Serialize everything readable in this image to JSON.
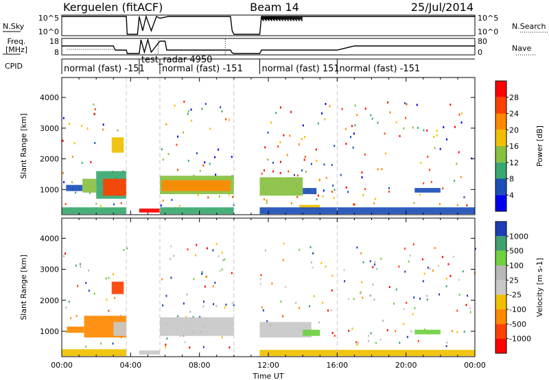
{
  "header": {
    "station": "Kerguelen (fitACF)",
    "beam": "Beam 14",
    "date": "25/Jul/2014"
  },
  "top_panels": {
    "nsky_label": "N.Sky",
    "nsky_ticks": [
      "10^5",
      "10^0"
    ],
    "nsearch_label": "N.Search",
    "nsearch_ticks": [
      "10^5",
      "10^0"
    ],
    "freq_label_line1": "Freq.",
    "freq_label_line2": "[MHz]",
    "freq_ticks": [
      "18",
      "8"
    ],
    "nave_label": "Nave",
    "nave_ticks": [
      "80",
      "0"
    ],
    "cpid_label": "CPID"
  },
  "cpid_segments": [
    {
      "label": "normal (fast) -151",
      "start": 0.0,
      "end": 3.75
    },
    {
      "label": "test_radar 4950",
      "start": 4.5,
      "end": 5.7
    },
    {
      "label": "normal (fast) -151",
      "start": 5.7,
      "end": 10.0
    },
    {
      "label": "normal (fast) 151",
      "start": 11.5,
      "end": 16.0
    },
    {
      "label": "normal (fast) -151",
      "start": 16.0,
      "end": 24.0
    }
  ],
  "chart_data": [
    {
      "type": "heatmap",
      "id": "power",
      "xlabel": "",
      "ylabel": "Slant Range [km]",
      "xlim": [
        0,
        24
      ],
      "ylim": [
        180,
        4650
      ],
      "yticks": [
        "1000",
        "2000",
        "3000",
        "4000"
      ],
      "colorbar_label": "Power [dB]",
      "colorbar_ticks": [
        "28",
        "24",
        "20",
        "16",
        "12",
        "8",
        "4"
      ],
      "scale": [
        {
          "value": 30,
          "color": "#ff0000"
        },
        {
          "value": 26,
          "color": "#ff4000"
        },
        {
          "value": 22,
          "color": "#ff8800"
        },
        {
          "value": 18,
          "color": "#f0c000"
        },
        {
          "value": 14,
          "color": "#88c040"
        },
        {
          "value": 10,
          "color": "#38a870"
        },
        {
          "value": 6,
          "color": "#1c4fb8"
        },
        {
          "value": 2,
          "color": "#0000ee"
        }
      ],
      "regions": [
        {
          "t0": 0.25,
          "t1": 1.2,
          "r0": 950,
          "r1": 1150,
          "v": 6
        },
        {
          "t0": 1.2,
          "t1": 2.0,
          "r0": 900,
          "r1": 1350,
          "v": 14
        },
        {
          "t0": 2.0,
          "t1": 3.75,
          "r0": 700,
          "r1": 1600,
          "v": 10
        },
        {
          "t0": 2.4,
          "t1": 3.75,
          "r0": 800,
          "r1": 1350,
          "v": 26
        },
        {
          "t0": 2.9,
          "t1": 3.6,
          "r0": 2200,
          "r1": 2700,
          "v": 18
        },
        {
          "t0": 5.7,
          "t1": 10.0,
          "r0": 850,
          "r1": 1450,
          "v": 12
        },
        {
          "t0": 5.8,
          "t1": 9.8,
          "r0": 950,
          "r1": 1300,
          "v": 22
        },
        {
          "t0": 11.5,
          "t1": 14.0,
          "r0": 800,
          "r1": 1400,
          "v": 12
        },
        {
          "t0": 14.0,
          "t1": 14.8,
          "r0": 850,
          "r1": 1050,
          "v": 6
        },
        {
          "t0": 13.8,
          "t1": 15.0,
          "r0": 350,
          "r1": 500,
          "v": 18
        },
        {
          "t0": 20.5,
          "t1": 22.0,
          "r0": 900,
          "r1": 1050,
          "v": 6
        },
        {
          "t0": 4.5,
          "t1": 5.7,
          "r0": 250,
          "r1": 380,
          "v": 30
        },
        {
          "t0": 0.0,
          "t1": 3.75,
          "r0": 200,
          "r1": 420,
          "v": 8
        },
        {
          "t0": 5.7,
          "t1": 10.0,
          "r0": 200,
          "r1": 420,
          "v": 8
        },
        {
          "t0": 11.5,
          "t1": 24.0,
          "r0": 200,
          "r1": 420,
          "v": 6
        }
      ]
    },
    {
      "type": "heatmap",
      "id": "velocity",
      "xlabel": "Time UT",
      "ylabel": "Slant Range [km]",
      "xlim": [
        0,
        24
      ],
      "ylim": [
        180,
        4650
      ],
      "xticks": [
        "00:00",
        "04:00",
        "08:00",
        "12:00",
        "16:00",
        "20:00",
        "00:00"
      ],
      "yticks": [
        "1000",
        "2000",
        "3000",
        "4000"
      ],
      "colorbar_label": "Velocity [m s-1]",
      "colorbar_ticks": [
        "1000",
        "500",
        "100",
        "25",
        "-25",
        "-100",
        "-500",
        "-1000"
      ],
      "scale": [
        {
          "value": 1200,
          "color": "#1c3fb8"
        },
        {
          "value": 700,
          "color": "#3fa070"
        },
        {
          "value": 200,
          "color": "#70d040"
        },
        {
          "value": 50,
          "color": "#b8b8b8"
        },
        {
          "value": 0,
          "color": "#c8c8c8"
        },
        {
          "value": -50,
          "color": "#f0c000"
        },
        {
          "value": -200,
          "color": "#ff8800"
        },
        {
          "value": -700,
          "color": "#ff4000"
        },
        {
          "value": -1200,
          "color": "#ff0000"
        }
      ],
      "regions": [
        {
          "t0": 0.3,
          "t1": 1.3,
          "r0": 950,
          "r1": 1150,
          "v": -200
        },
        {
          "t0": 1.3,
          "t1": 3.75,
          "r0": 800,
          "r1": 1500,
          "v": -200
        },
        {
          "t0": 3.0,
          "t1": 3.75,
          "r0": 850,
          "r1": 1300,
          "v": 0
        },
        {
          "t0": 2.9,
          "t1": 3.6,
          "r0": 2200,
          "r1": 2600,
          "v": -700
        },
        {
          "t0": 5.7,
          "t1": 10.0,
          "r0": 850,
          "r1": 1450,
          "v": 0
        },
        {
          "t0": 11.5,
          "t1": 14.5,
          "r0": 800,
          "r1": 1300,
          "v": 0
        },
        {
          "t0": 14.0,
          "t1": 15.0,
          "r0": 850,
          "r1": 1050,
          "v": 200
        },
        {
          "t0": 20.5,
          "t1": 22.0,
          "r0": 900,
          "r1": 1050,
          "v": 200
        },
        {
          "t0": 0.0,
          "t1": 3.75,
          "r0": 200,
          "r1": 420,
          "v": -50
        },
        {
          "t0": 4.5,
          "t1": 5.7,
          "r0": 250,
          "r1": 380,
          "v": 0
        },
        {
          "t0": 11.5,
          "t1": 24.0,
          "r0": 200,
          "r1": 400,
          "v": -50
        }
      ]
    }
  ],
  "time_series": {
    "nsky": [
      [
        0,
        1.0
      ],
      [
        3.75,
        1.0
      ],
      [
        3.8,
        0.0
      ],
      [
        4.4,
        0.0
      ],
      [
        4.5,
        1.0
      ],
      [
        4.7,
        0.2
      ],
      [
        4.9,
        1.0
      ],
      [
        5.2,
        0.2
      ],
      [
        5.5,
        1.0
      ],
      [
        5.7,
        0.9
      ],
      [
        6.2,
        1.0
      ],
      [
        9.8,
        1.0
      ],
      [
        9.9,
        0.2
      ],
      [
        10.0,
        0.0
      ],
      [
        11.5,
        0.0
      ],
      [
        11.6,
        1.0
      ],
      [
        14.0,
        1.0
      ],
      [
        24.0,
        1.0
      ]
    ],
    "freq": [
      [
        0,
        0.55
      ],
      [
        3.0,
        0.55
      ],
      [
        3.1,
        0.25
      ],
      [
        3.75,
        0.25
      ],
      [
        3.8,
        0.0
      ],
      [
        4.5,
        0.0
      ],
      [
        4.6,
        1.0
      ],
      [
        4.8,
        0.1
      ],
      [
        5.0,
        1.0
      ],
      [
        5.2,
        0.1
      ],
      [
        5.7,
        0.9
      ],
      [
        6.0,
        0.9
      ],
      [
        6.1,
        0.25
      ],
      [
        9.8,
        0.25
      ],
      [
        9.9,
        0.05
      ],
      [
        10.0,
        0.0
      ],
      [
        11.5,
        0.0
      ],
      [
        11.6,
        0.25
      ],
      [
        16.0,
        0.25
      ],
      [
        17.0,
        0.55
      ],
      [
        24.0,
        0.55
      ]
    ]
  }
}
